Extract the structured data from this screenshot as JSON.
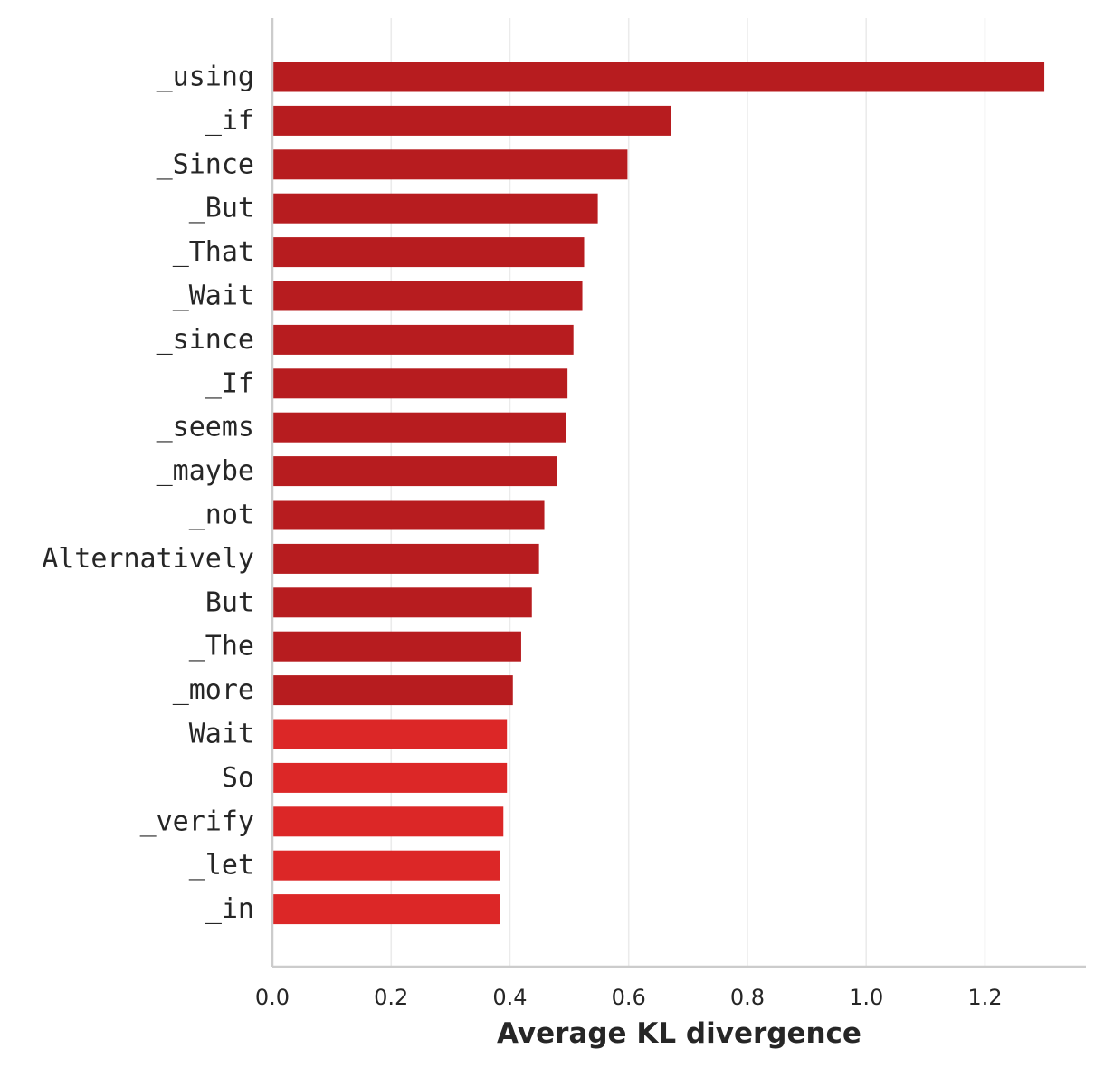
{
  "chart_data": {
    "type": "bar",
    "orientation": "horizontal",
    "title": "",
    "xlabel": "Average KL divergence",
    "ylabel": "",
    "xlim": [
      0,
      1.37
    ],
    "xticks": [
      0.0,
      0.2,
      0.4,
      0.6,
      0.8,
      1.0,
      1.2
    ],
    "xtick_labels": [
      "0.0",
      "0.2",
      "0.4",
      "0.6",
      "0.8",
      "1.0",
      "1.2"
    ],
    "grid": "vertical",
    "legend": "none",
    "colors": {
      "dark_red": "#b71c1f",
      "red": "#dc2727",
      "grid": "#ebebeb",
      "spine": "#cccccc",
      "text": "#262626"
    },
    "categories": [
      "_using",
      "_if",
      "_Since",
      "_But",
      "_That",
      "_Wait",
      "_since",
      "_If",
      "_seems",
      "_maybe",
      "_not",
      "Alternatively",
      "But",
      "_The",
      "_more",
      "Wait",
      "So",
      "_verify",
      "_let",
      "_in"
    ],
    "values": [
      1.3,
      0.672,
      0.598,
      0.548,
      0.525,
      0.522,
      0.507,
      0.497,
      0.495,
      0.48,
      0.458,
      0.449,
      0.437,
      0.419,
      0.405,
      0.395,
      0.395,
      0.389,
      0.384,
      0.384
    ],
    "bar_colors": [
      "dark_red",
      "dark_red",
      "dark_red",
      "dark_red",
      "dark_red",
      "dark_red",
      "dark_red",
      "dark_red",
      "dark_red",
      "dark_red",
      "dark_red",
      "dark_red",
      "dark_red",
      "dark_red",
      "dark_red",
      "red",
      "red",
      "red",
      "red",
      "red"
    ]
  }
}
